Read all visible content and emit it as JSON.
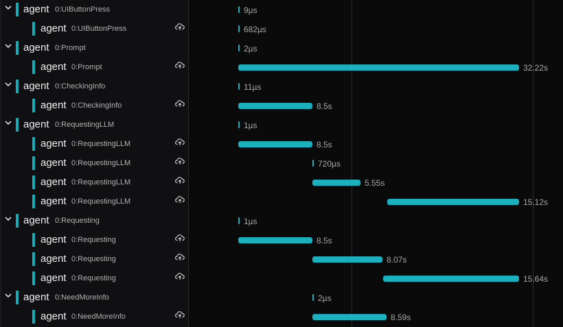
{
  "accent_color": "#19aab8",
  "icons": {
    "expand": "chevron-down-icon",
    "upload": "cloud-upload-icon"
  },
  "rows": [
    {
      "kind": "group",
      "name": "agent",
      "label": "0:UIButtonPress",
      "duration": "9µs"
    },
    {
      "kind": "child",
      "name": "agent",
      "label": "0:UIButtonPress",
      "duration": "682µs"
    },
    {
      "kind": "group",
      "name": "agent",
      "label": "0:Prompt",
      "duration": "2µs"
    },
    {
      "kind": "child",
      "name": "agent",
      "label": "0:Prompt",
      "duration": "32.22s"
    },
    {
      "kind": "group",
      "name": "agent",
      "label": "0:CheckingInfo",
      "duration": "11µs"
    },
    {
      "kind": "child",
      "name": "agent",
      "label": "0:CheckingInfo",
      "duration": "8.5s"
    },
    {
      "kind": "group",
      "name": "agent",
      "label": "0:RequestingLLM",
      "duration": "1µs"
    },
    {
      "kind": "child",
      "name": "agent",
      "label": "0:RequestingLLM",
      "duration": "8.5s"
    },
    {
      "kind": "child",
      "name": "agent",
      "label": "0:RequestingLLM",
      "duration": "720µs"
    },
    {
      "kind": "child",
      "name": "agent",
      "label": "0:RequestingLLM",
      "duration": "5.55s"
    },
    {
      "kind": "child",
      "name": "agent",
      "label": "0:RequestingLLM",
      "duration": "15.12s"
    },
    {
      "kind": "group",
      "name": "agent",
      "label": "0:Requesting",
      "duration": "1µs"
    },
    {
      "kind": "child",
      "name": "agent",
      "label": "0:Requesting",
      "duration": "8.5s"
    },
    {
      "kind": "child",
      "name": "agent",
      "label": "0:Requesting",
      "duration": "8.07s"
    },
    {
      "kind": "child",
      "name": "agent",
      "label": "0:Requesting",
      "duration": "15.64s"
    },
    {
      "kind": "group",
      "name": "agent",
      "label": "0:NeedMoreInfo",
      "duration": "2µs"
    },
    {
      "kind": "child",
      "name": "agent",
      "label": "0:NeedMoreInfo",
      "duration": "8.59s"
    }
  ]
}
